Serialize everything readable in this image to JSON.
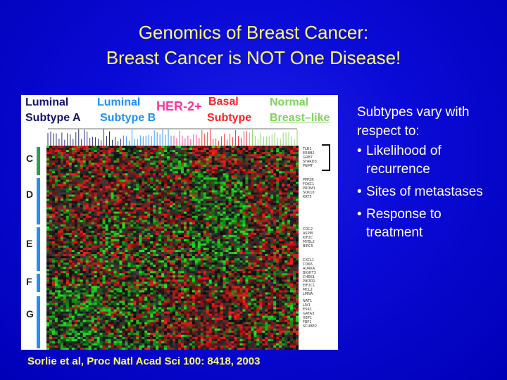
{
  "slide": {
    "title_line1": "Genomics of Breast Cancer:",
    "title_line2": "Breast Cancer is NOT One Disease!",
    "citation": "Sorlie et al, Proc Natl Acad Sci 100: 8418, 2003"
  },
  "figure": {
    "labels": {
      "luminal_a_1": "Luminal",
      "luminal_a_2": "Subtype A",
      "luminal_b_1": "Luminal",
      "luminal_b_2": "Subtype B",
      "her2": "HER-2+",
      "basal_1": "Basal",
      "basal_2": "Subtype",
      "normal_1": "Normal",
      "normal_2": "Breast–like"
    },
    "label_colors": {
      "luminal_a": "#14146e",
      "luminal_b": "#1e90ff",
      "her2": "#ff3399",
      "basal": "#ff2222",
      "normal": "#7fd45a"
    },
    "row_letters": [
      "C",
      "D",
      "E",
      "F",
      "G"
    ],
    "gene_groups": [
      [
        "TLR1",
        "ERBB2",
        "GRB7",
        "STARD3",
        "PNMT"
      ],
      [
        "PPP2R",
        "FOXC1",
        "PROM1",
        "SOX10",
        "KRT5"
      ],
      [
        "CDC2",
        "ASPM",
        "KIF2C",
        "MYBL2",
        "BIRC5"
      ],
      [
        "CXCL1",
        "CDK6",
        "AURKA",
        "BIGHT3",
        "CHEK1"
      ],
      [
        "PIK3R1",
        "EIF2C1",
        "MCL2",
        "LMNA"
      ],
      [
        "NAT1",
        "LIV1",
        "ESR1",
        "GATA3",
        "XBP1",
        "FBP1",
        "SCUBE2"
      ]
    ]
  },
  "bullets": {
    "intro": "Subtypes vary with respect to:",
    "items": [
      "Likelihood of recurrence",
      "Sites of metastases",
      "Response to treatment"
    ]
  }
}
